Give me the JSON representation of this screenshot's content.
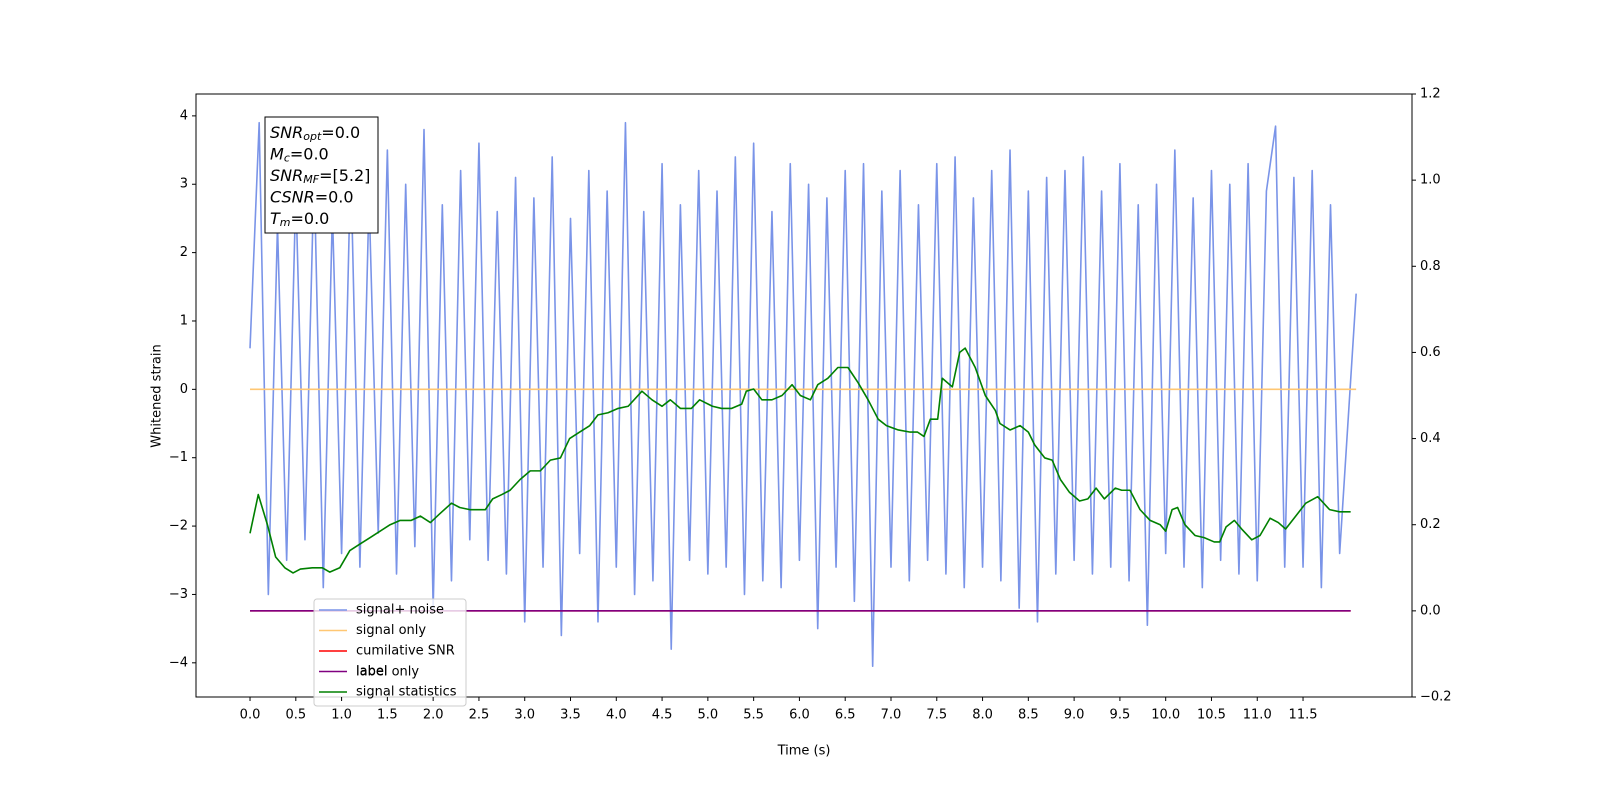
{
  "chart_data": {
    "type": "line",
    "xlabel": "Time (s)",
    "ylabel": "Whitened strain",
    "xlim": [
      -0.59,
      12.69
    ],
    "ylim": [
      -4.5,
      4.32
    ],
    "y2lim": [
      -0.2,
      1.2
    ],
    "xticks": [
      {
        "value": 0,
        "label": "0.0"
      },
      0.5,
      {
        "value": 1,
        "label": "1.0"
      },
      1.5,
      {
        "value": 2,
        "label": "2.0"
      },
      2.5,
      {
        "value": 3,
        "label": "3.0"
      },
      3.5,
      {
        "value": 4,
        "label": "4.0"
      },
      4.5,
      {
        "value": 5,
        "label": "5.0"
      },
      5.5,
      {
        "value": 6,
        "label": "6.0"
      },
      6.5,
      {
        "value": 7,
        "label": "7.0"
      },
      7.5,
      {
        "value": 8,
        "label": "8.0"
      },
      8.5,
      {
        "value": 9,
        "label": "9.0"
      },
      9.5,
      {
        "value": 10,
        "label": "10.0"
      },
      10.5,
      {
        "value": 11,
        "label": "11.0"
      },
      11.5
    ],
    "yticks": [
      {
        "value": -4,
        "label": "−4"
      },
      {
        "value": -3,
        "label": "−3"
      },
      {
        "value": -2,
        "label": "−2"
      },
      {
        "value": -1,
        "label": "−1"
      },
      0,
      1,
      2,
      3,
      4
    ],
    "y2ticks": [
      {
        "value": -0.2,
        "label": "−0.2"
      },
      {
        "value": 0,
        "label": "0.0"
      },
      0.2,
      0.4,
      0.6,
      0.8,
      {
        "value": 1,
        "label": "1.0"
      },
      1.2
    ],
    "info_box": [
      {
        "text": "SNR",
        "sub": "opt",
        "value": "=0.0"
      },
      {
        "text": "M",
        "sub": "c",
        "value": "=0.0"
      },
      {
        "text": "SNR",
        "sub": "MF",
        "value": "=[5.2]"
      },
      {
        "text": "CSNR",
        "value": "=0.0"
      },
      {
        "text": "T",
        "sub": "m",
        "value": "=0.0"
      }
    ],
    "annotation": "label only",
    "series": [
      {
        "name": "signal+ noise",
        "color": "#7a94e8",
        "x": [
          0,
          0.1,
          0.2,
          0.3,
          0.4,
          0.5,
          0.6,
          0.7,
          0.8,
          0.9,
          1,
          1.1,
          1.2,
          1.3,
          1.4,
          1.5,
          1.6,
          1.7,
          1.8,
          1.9,
          2,
          2.1,
          2.2,
          2.3,
          2.4,
          2.5,
          2.6,
          2.7,
          2.8,
          2.9,
          3,
          3.1,
          3.2,
          3.3,
          3.4,
          3.5,
          3.6,
          3.7,
          3.8,
          3.9,
          4,
          4.1,
          4.2,
          4.3,
          4.4,
          4.5,
          4.6,
          4.7,
          4.8,
          4.9,
          5,
          5.1,
          5.2,
          5.3,
          5.4,
          5.5,
          5.6,
          5.7,
          5.8,
          5.9,
          6,
          6.1,
          6.2,
          6.3,
          6.4,
          6.5,
          6.6,
          6.7,
          6.8,
          6.9,
          7,
          7.1,
          7.2,
          7.3,
          7.4,
          7.5,
          7.6,
          7.7,
          7.8,
          7.9,
          8,
          8.1,
          8.2,
          8.3,
          8.4,
          8.5,
          8.6,
          8.7,
          8.8,
          8.9,
          9,
          9.1,
          9.2,
          9.3,
          9.4,
          9.5,
          9.6,
          9.7,
          9.8,
          9.9,
          10,
          10.1,
          10.2,
          10.3,
          10.4,
          10.5,
          10.6,
          10.7,
          10.8,
          10.9,
          11,
          11.1,
          11.2,
          11.3,
          11.4,
          11.5,
          11.6,
          11.7,
          11.8,
          11.9,
          12.08
        ],
        "values": [
          0.6,
          3.9,
          -3.0,
          2.4,
          -2.5,
          2.9,
          -2.2,
          3.2,
          -2.9,
          2.6,
          -2.4,
          3.3,
          -2.6,
          2.8,
          -2.1,
          3.5,
          -2.7,
          3.0,
          -2.3,
          3.8,
          -3.2,
          2.7,
          -2.8,
          3.2,
          -2.2,
          3.6,
          -2.5,
          2.6,
          -2.7,
          3.1,
          -3.4,
          2.8,
          -2.6,
          3.4,
          -3.6,
          2.5,
          -2.4,
          3.2,
          -3.4,
          2.9,
          -2.6,
          3.9,
          -3.0,
          2.6,
          -2.8,
          3.3,
          -3.8,
          2.7,
          -2.5,
          3.2,
          -2.7,
          2.9,
          -2.6,
          3.4,
          -3.0,
          3.6,
          -2.8,
          2.6,
          -2.9,
          3.3,
          -2.5,
          3.0,
          -3.5,
          2.8,
          -2.6,
          3.2,
          -3.1,
          3.3,
          -4.05,
          2.9,
          -2.6,
          3.2,
          -2.8,
          2.7,
          -2.5,
          3.3,
          -2.7,
          3.4,
          -2.9,
          2.8,
          -2.6,
          3.2,
          -2.8,
          3.5,
          -3.2,
          2.9,
          -3.4,
          3.1,
          -2.7,
          3.2,
          -2.5,
          3.4,
          -2.7,
          2.9,
          -2.6,
          3.3,
          -2.8,
          2.7,
          -3.45,
          3.0,
          -2.4,
          3.5,
          -2.6,
          2.8,
          -2.9,
          3.2,
          -2.5,
          3.0,
          -2.7,
          3.3,
          -2.8,
          2.9,
          3.85,
          -2.6,
          3.1,
          -2.6,
          3.2,
          -2.9,
          2.7,
          -2.4,
          1.4
        ]
      },
      {
        "name": "signal only",
        "color": "#ffc773",
        "x": [
          0,
          12.08
        ],
        "values": [
          0,
          0
        ]
      },
      {
        "name": "cumilative SNR",
        "color": "#ff0000",
        "axis": "y2",
        "x": [
          0,
          12.02
        ],
        "values": [
          0,
          0
        ]
      },
      {
        "name": "label",
        "color": "#800080",
        "axis": "y2",
        "x": [
          0,
          12.02
        ],
        "values": [
          0,
          0
        ]
      },
      {
        "name": "signal statistics",
        "color": "#008000",
        "axis": "y2",
        "x": [
          0,
          0.09,
          0.19,
          0.28,
          0.38,
          0.47,
          0.55,
          0.68,
          0.79,
          0.87,
          0.98,
          1.09,
          1.2,
          1.31,
          1.42,
          1.53,
          1.64,
          1.76,
          1.86,
          1.97,
          2.07,
          2.2,
          2.29,
          2.4,
          2.57,
          2.65,
          2.75,
          2.84,
          2.95,
          3.06,
          3.17,
          3.28,
          3.39,
          3.49,
          3.6,
          3.71,
          3.8,
          3.91,
          4.02,
          4.13,
          4.28,
          4.39,
          4.5,
          4.59,
          4.7,
          4.82,
          4.91,
          5.05,
          5.15,
          5.26,
          5.37,
          5.42,
          5.5,
          5.59,
          5.7,
          5.81,
          5.92,
          6.01,
          6.12,
          6.2,
          6.31,
          6.42,
          6.53,
          6.64,
          6.75,
          6.86,
          6.95,
          7.08,
          7.21,
          7.29,
          7.36,
          7.43,
          7.51,
          7.56,
          7.67,
          7.75,
          7.81,
          7.92,
          8.03,
          8.14,
          8.19,
          8.3,
          8.41,
          8.5,
          8.57,
          8.68,
          8.76,
          8.85,
          8.95,
          9.06,
          9.15,
          9.24,
          9.33,
          9.45,
          9.52,
          9.61,
          9.72,
          9.83,
          9.94,
          10,
          10.07,
          10.13,
          10.21,
          10.32,
          10.42,
          10.53,
          10.59,
          10.66,
          10.75,
          10.83,
          10.94,
          11.03,
          11.14,
          11.23,
          11.31,
          11.42,
          11.53,
          11.66,
          11.79,
          11.9,
          12.02
        ],
        "values": [
          0.18,
          0.27,
          0.2,
          0.125,
          0.1,
          0.088,
          0.097,
          0.1,
          0.1,
          0.09,
          0.1,
          0.14,
          0.155,
          0.17,
          0.185,
          0.2,
          0.21,
          0.21,
          0.22,
          0.205,
          0.225,
          0.25,
          0.24,
          0.235,
          0.235,
          0.26,
          0.27,
          0.28,
          0.305,
          0.325,
          0.325,
          0.35,
          0.355,
          0.4,
          0.415,
          0.43,
          0.455,
          0.46,
          0.47,
          0.475,
          0.51,
          0.49,
          0.475,
          0.49,
          0.47,
          0.47,
          0.49,
          0.475,
          0.47,
          0.47,
          0.48,
          0.51,
          0.515,
          0.49,
          0.49,
          0.5,
          0.525,
          0.5,
          0.49,
          0.525,
          0.54,
          0.565,
          0.565,
          0.53,
          0.49,
          0.445,
          0.43,
          0.42,
          0.415,
          0.415,
          0.405,
          0.445,
          0.445,
          0.54,
          0.52,
          0.6,
          0.61,
          0.565,
          0.5,
          0.465,
          0.435,
          0.42,
          0.43,
          0.415,
          0.385,
          0.355,
          0.35,
          0.305,
          0.275,
          0.255,
          0.26,
          0.285,
          0.26,
          0.285,
          0.28,
          0.28,
          0.235,
          0.21,
          0.2,
          0.185,
          0.235,
          0.24,
          0.2,
          0.175,
          0.17,
          0.16,
          0.16,
          0.195,
          0.21,
          0.19,
          0.165,
          0.175,
          0.215,
          0.205,
          0.19,
          0.22,
          0.25,
          0.265,
          0.235,
          0.23,
          0.23
        ]
      }
    ]
  }
}
